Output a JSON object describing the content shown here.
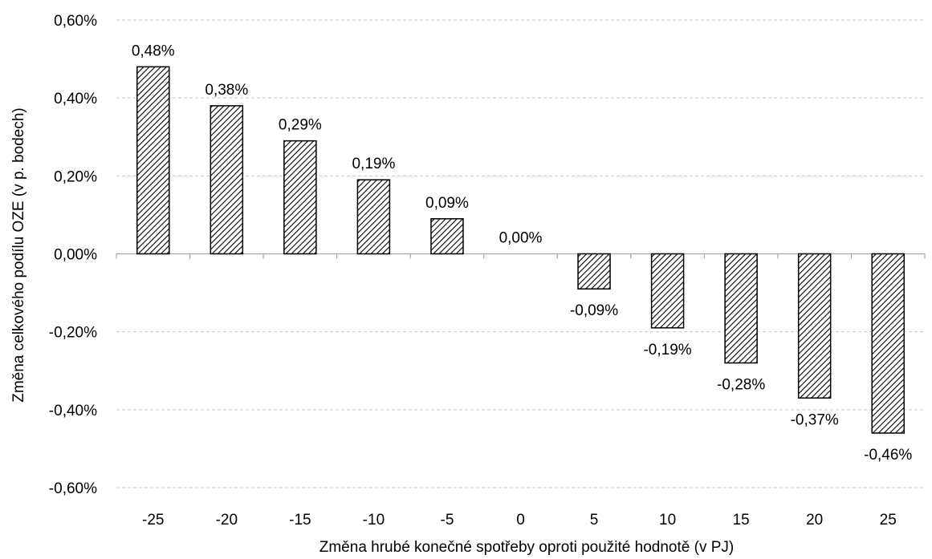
{
  "chart_data": {
    "type": "bar",
    "categories": [
      "-25",
      "-20",
      "-15",
      "-10",
      "-5",
      "0",
      "5",
      "10",
      "15",
      "20",
      "25"
    ],
    "values": [
      0.48,
      0.38,
      0.29,
      0.19,
      0.09,
      0.0,
      -0.09,
      -0.19,
      -0.28,
      -0.37,
      -0.46
    ],
    "data_labels": [
      "0,48%",
      "0,38%",
      "0,29%",
      "0,19%",
      "0,09%",
      "0,00%",
      "-0,09%",
      "-0,19%",
      "-0,28%",
      "-0,37%",
      "-0,46%"
    ],
    "y_ticks": [
      0.6,
      0.4,
      0.2,
      0.0,
      -0.2,
      -0.4,
      -0.6
    ],
    "y_tick_labels": [
      "0,60%",
      "0,40%",
      "0,20%",
      "0,00%",
      "-0,20%",
      "-0,40%",
      "-0,60%"
    ],
    "ylim": [
      -0.6,
      0.6
    ],
    "title": "",
    "xlabel": "Změna hrubé konečné spotřeby oproti použité hodnotě (v PJ)",
    "ylabel": "Změna celkového podílu  OZE (v p. bodech)",
    "grid": true,
    "legend": false,
    "bar_fill": "hatched",
    "colors": {
      "bar_stroke": "#000000",
      "hatch": "#000000",
      "grid": "#c9c9c9",
      "axis": "#a6a6a6",
      "text": "#000000"
    }
  }
}
